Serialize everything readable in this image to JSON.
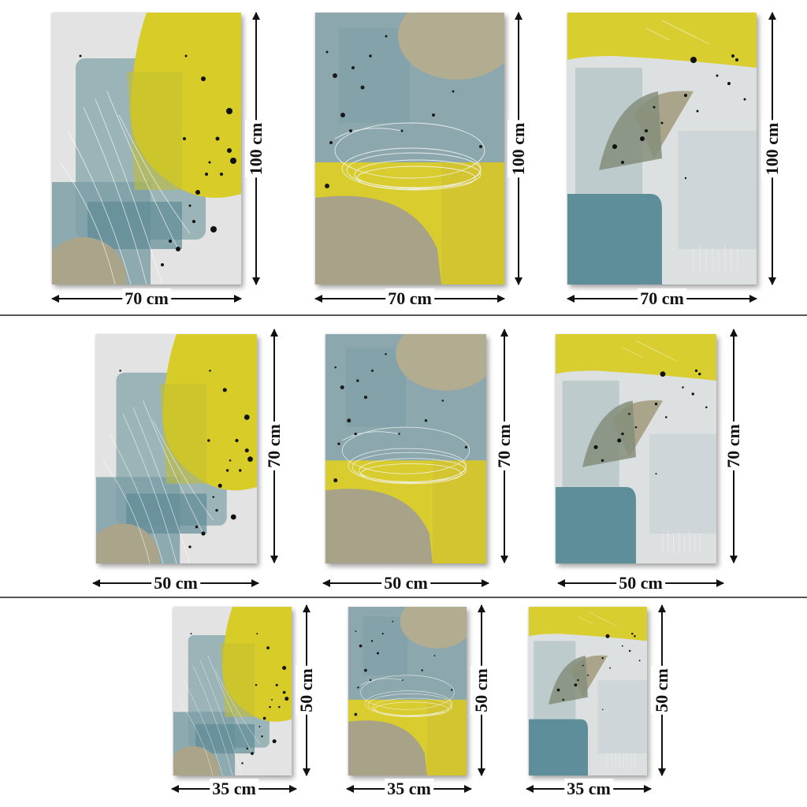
{
  "rows": [
    {
      "width_label": "70 cm",
      "height_label": "100 cm"
    },
    {
      "width_label": "50 cm",
      "height_label": "70 cm"
    },
    {
      "width_label": "35 cm",
      "height_label": "50 cm"
    }
  ],
  "designs": [
    "abstract-yellow-arch",
    "abstract-teal-loop",
    "abstract-yellow-top"
  ],
  "colors": {
    "yellow": "#D6CC2A",
    "teal": "#8FAAB0",
    "dark_teal": "#5E8E9A",
    "khaki": "#A9A48A",
    "olive": "#8E9278",
    "pale": "#E4E6E6",
    "ink": "#111111"
  }
}
